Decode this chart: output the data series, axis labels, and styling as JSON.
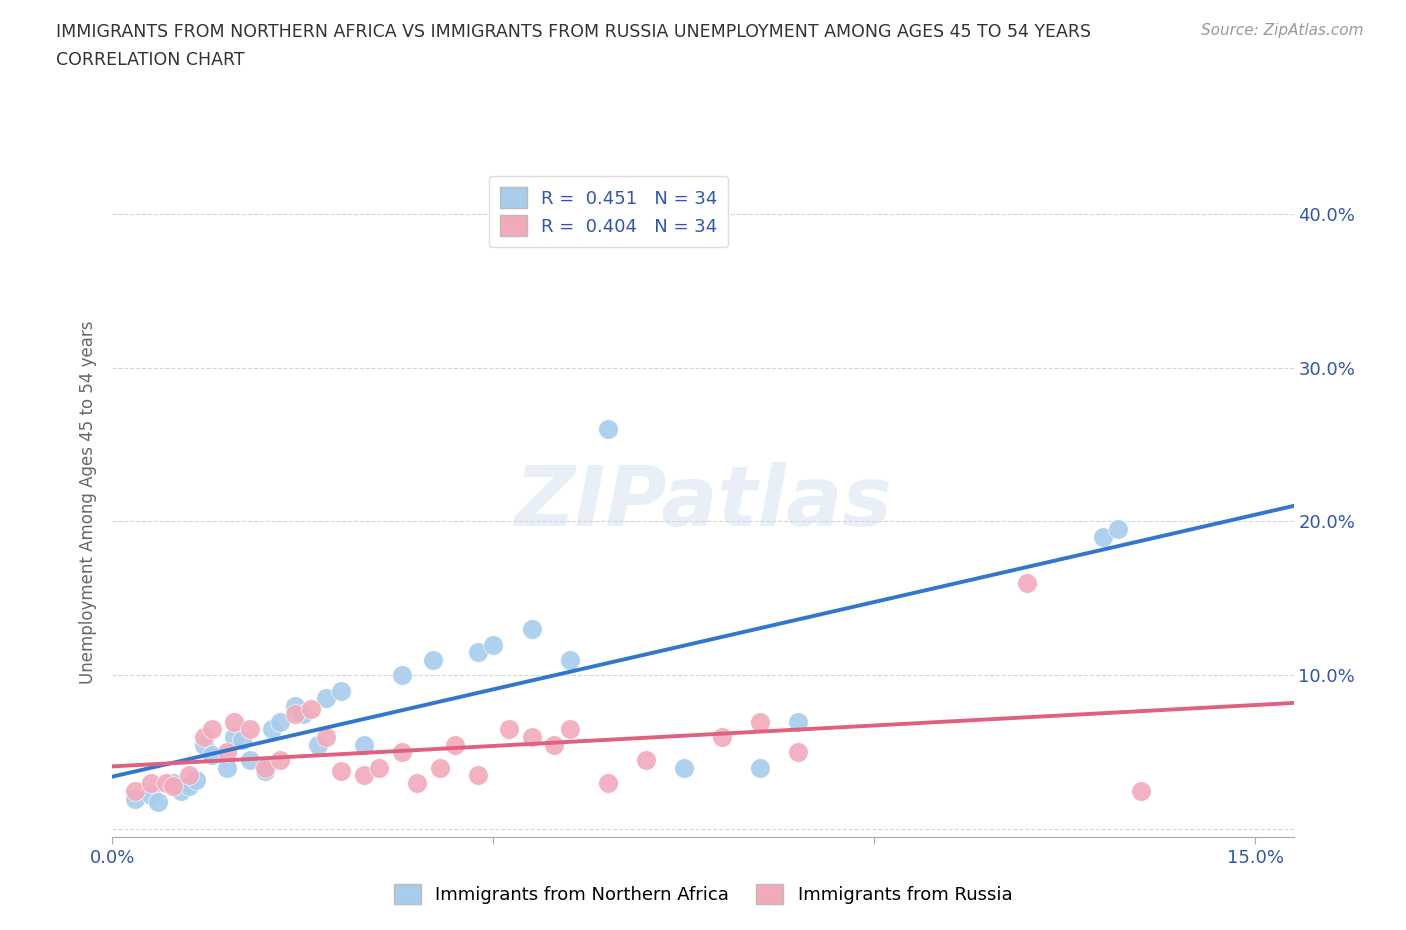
{
  "title_line1": "IMMIGRANTS FROM NORTHERN AFRICA VS IMMIGRANTS FROM RUSSIA UNEMPLOYMENT AMONG AGES 45 TO 54 YEARS",
  "title_line2": "CORRELATION CHART",
  "source": "Source: ZipAtlas.com",
  "ylabel": "Unemployment Among Ages 45 to 54 years",
  "xlim": [
    0.0,
    0.155
  ],
  "ylim": [
    -0.005,
    0.43
  ],
  "ytick_labels_right": [
    "",
    "10.0%",
    "20.0%",
    "30.0%",
    "40.0%"
  ],
  "ytick_positions_right": [
    0.0,
    0.1,
    0.2,
    0.3,
    0.4
  ],
  "blue_r": 0.451,
  "blue_n": 34,
  "pink_r": 0.404,
  "pink_n": 34,
  "blue_color": "#A8CCEC",
  "pink_color": "#F2AABB",
  "blue_line_color": "#3377CC",
  "pink_line_color": "#E06080",
  "legend_text_color": "#3355AA",
  "watermark": "ZIPatlas",
  "blue_scatter_x": [
    0.003,
    0.005,
    0.006,
    0.008,
    0.009,
    0.01,
    0.011,
    0.012,
    0.013,
    0.015,
    0.016,
    0.017,
    0.018,
    0.02,
    0.021,
    0.022,
    0.024,
    0.025,
    0.027,
    0.028,
    0.03,
    0.033,
    0.038,
    0.042,
    0.048,
    0.05,
    0.055,
    0.06,
    0.065,
    0.075,
    0.085,
    0.09,
    0.13,
    0.132
  ],
  "blue_scatter_y": [
    0.02,
    0.022,
    0.018,
    0.03,
    0.025,
    0.028,
    0.032,
    0.055,
    0.048,
    0.04,
    0.06,
    0.058,
    0.045,
    0.038,
    0.065,
    0.07,
    0.08,
    0.075,
    0.055,
    0.085,
    0.09,
    0.055,
    0.1,
    0.11,
    0.115,
    0.12,
    0.13,
    0.11,
    0.26,
    0.04,
    0.04,
    0.07,
    0.19,
    0.195
  ],
  "pink_scatter_x": [
    0.003,
    0.005,
    0.007,
    0.008,
    0.01,
    0.012,
    0.013,
    0.015,
    0.016,
    0.018,
    0.02,
    0.022,
    0.024,
    0.026,
    0.028,
    0.03,
    0.033,
    0.035,
    0.038,
    0.04,
    0.043,
    0.045,
    0.048,
    0.052,
    0.055,
    0.058,
    0.06,
    0.065,
    0.07,
    0.08,
    0.085,
    0.09,
    0.12,
    0.135
  ],
  "pink_scatter_y": [
    0.025,
    0.03,
    0.03,
    0.028,
    0.035,
    0.06,
    0.065,
    0.05,
    0.07,
    0.065,
    0.04,
    0.045,
    0.075,
    0.078,
    0.06,
    0.038,
    0.035,
    0.04,
    0.05,
    0.03,
    0.04,
    0.055,
    0.035,
    0.065,
    0.06,
    0.055,
    0.065,
    0.03,
    0.045,
    0.06,
    0.07,
    0.05,
    0.16,
    0.025
  ],
  "background_color": "#FFFFFF",
  "grid_color": "#CCCCCC"
}
